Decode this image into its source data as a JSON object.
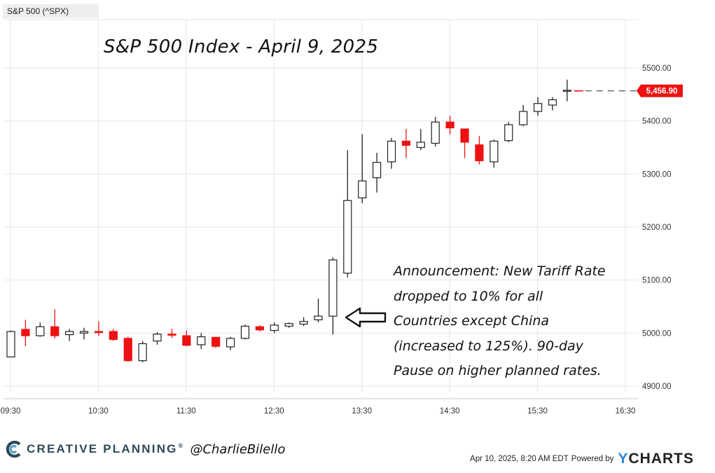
{
  "ticker_label": "S&P 500 (^SPX)",
  "title": "S&P 500 Index - April 9, 2025",
  "annotation": {
    "lines": [
      "Announcement: New Tariff Rate",
      "dropped to 10% for all",
      "Countries except China",
      "(increased to 125%). 90-day",
      "Pause on higher planned rates."
    ]
  },
  "footer": {
    "brand": "CREATIVE PLANNING",
    "registered": "®",
    "handle": "@CharlieBilello",
    "timestamp": "Apr 10, 2025, 8:20 AM EDT",
    "powered_by": "Powered by",
    "ycharts_y": "Y",
    "ycharts_rest": "CHARTS"
  },
  "colors": {
    "up": "#ffffff",
    "down": "#ee1111",
    "outline": "#222222",
    "last_price_bg": "#ee1111"
  },
  "chart_data": {
    "type": "candlestick",
    "title": "S&P 500 Index - April 9, 2025",
    "interval_minutes": 10,
    "x_ticks": [
      "09:30",
      "10:30",
      "11:30",
      "12:30",
      "13:30",
      "14:30",
      "15:30",
      "16:30"
    ],
    "x_range_minutes": [
      0,
      425
    ],
    "y_ticks": [
      "4900.00",
      "5000.00",
      "5100.00",
      "5200.00",
      "5300.00",
      "5400.00",
      "5500.00"
    ],
    "y_range": [
      4880,
      5600
    ],
    "last_price": 5456.9,
    "last_price_label": "5,456.90",
    "candles": [
      {
        "t": 0,
        "o": 4955,
        "h": 5005,
        "l": 4955,
        "c": 5003
      },
      {
        "t": 10,
        "o": 5007,
        "h": 5025,
        "l": 4975,
        "c": 4995
      },
      {
        "t": 20,
        "o": 4995,
        "h": 5020,
        "l": 4993,
        "c": 5012
      },
      {
        "t": 30,
        "o": 5012,
        "h": 5045,
        "l": 4990,
        "c": 4995
      },
      {
        "t": 40,
        "o": 4997,
        "h": 5008,
        "l": 4985,
        "c": 5003
      },
      {
        "t": 50,
        "o": 5000,
        "h": 5010,
        "l": 4988,
        "c": 5003
      },
      {
        "t": 60,
        "o": 5003,
        "h": 5022,
        "l": 4995,
        "c": 5001
      },
      {
        "t": 70,
        "o": 5003,
        "h": 5008,
        "l": 4985,
        "c": 4988
      },
      {
        "t": 80,
        "o": 4990,
        "h": 4993,
        "l": 4946,
        "c": 4948
      },
      {
        "t": 90,
        "o": 4948,
        "h": 4985,
        "l": 4945,
        "c": 4980
      },
      {
        "t": 100,
        "o": 4985,
        "h": 5002,
        "l": 4978,
        "c": 4998
      },
      {
        "t": 110,
        "o": 4998,
        "h": 5008,
        "l": 4991,
        "c": 4996
      },
      {
        "t": 120,
        "o": 4995,
        "h": 5005,
        "l": 4975,
        "c": 4977
      },
      {
        "t": 130,
        "o": 4978,
        "h": 5000,
        "l": 4970,
        "c": 4993
      },
      {
        "t": 140,
        "o": 4992,
        "h": 4993,
        "l": 4972,
        "c": 4975
      },
      {
        "t": 150,
        "o": 4974,
        "h": 4993,
        "l": 4968,
        "c": 4990
      },
      {
        "t": 160,
        "o": 4990,
        "h": 5016,
        "l": 4988,
        "c": 5013
      },
      {
        "t": 170,
        "o": 5012,
        "h": 5015,
        "l": 5003,
        "c": 5006
      },
      {
        "t": 180,
        "o": 5005,
        "h": 5020,
        "l": 5000,
        "c": 5015
      },
      {
        "t": 190,
        "o": 5013,
        "h": 5020,
        "l": 5010,
        "c": 5018
      },
      {
        "t": 200,
        "o": 5017,
        "h": 5030,
        "l": 5013,
        "c": 5022
      },
      {
        "t": 210,
        "o": 5025,
        "h": 5065,
        "l": 5020,
        "c": 5032
      },
      {
        "t": 220,
        "o": 5032,
        "h": 5143,
        "l": 4997,
        "c": 5138
      },
      {
        "t": 230,
        "o": 5113,
        "h": 5345,
        "l": 5105,
        "c": 5250
      },
      {
        "t": 240,
        "o": 5255,
        "h": 5375,
        "l": 5245,
        "c": 5287
      },
      {
        "t": 250,
        "o": 5293,
        "h": 5340,
        "l": 5265,
        "c": 5322
      },
      {
        "t": 260,
        "o": 5323,
        "h": 5368,
        "l": 5310,
        "c": 5362
      },
      {
        "t": 270,
        "o": 5362,
        "h": 5385,
        "l": 5330,
        "c": 5354
      },
      {
        "t": 280,
        "o": 5350,
        "h": 5385,
        "l": 5345,
        "c": 5360
      },
      {
        "t": 290,
        "o": 5358,
        "h": 5408,
        "l": 5352,
        "c": 5398
      },
      {
        "t": 300,
        "o": 5398,
        "h": 5410,
        "l": 5375,
        "c": 5387
      },
      {
        "t": 310,
        "o": 5385,
        "h": 5385,
        "l": 5330,
        "c": 5360
      },
      {
        "t": 320,
        "o": 5355,
        "h": 5372,
        "l": 5318,
        "c": 5325
      },
      {
        "t": 330,
        "o": 5323,
        "h": 5365,
        "l": 5312,
        "c": 5362
      },
      {
        "t": 340,
        "o": 5363,
        "h": 5398,
        "l": 5360,
        "c": 5393
      },
      {
        "t": 350,
        "o": 5393,
        "h": 5430,
        "l": 5390,
        "c": 5418
      },
      {
        "t": 360,
        "o": 5418,
        "h": 5445,
        "l": 5410,
        "c": 5433
      },
      {
        "t": 370,
        "o": 5430,
        "h": 5445,
        "l": 5420,
        "c": 5440
      },
      {
        "t": 380,
        "o": 5456,
        "h": 5478,
        "l": 5437,
        "c": 5458
      }
    ]
  }
}
